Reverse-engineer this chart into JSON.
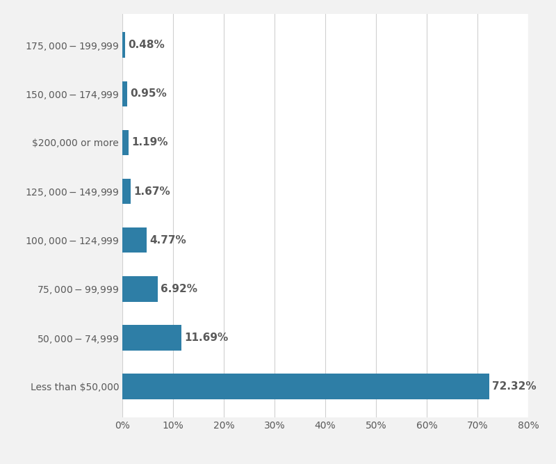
{
  "categories": [
    "Less than $50,000",
    "$50,000 - $74,999",
    "$75,000 - $99,999",
    "$100,000 - $124,999",
    "$125,000 - $149,999",
    "$200,000 or more",
    "$150,000 - $174,999",
    "$175,000 - $199,999"
  ],
  "values": [
    72.32,
    11.69,
    6.92,
    4.77,
    1.67,
    1.19,
    0.95,
    0.48
  ],
  "labels": [
    "72.32%",
    "11.69%",
    "6.92%",
    "4.77%",
    "1.67%",
    "1.19%",
    "0.95%",
    "0.48%"
  ],
  "bar_color": "#2e7ea6",
  "background_color": "#f2f2f2",
  "plot_background": "#ffffff",
  "grid_color": "#d0d0d0",
  "text_color": "#595959",
  "xlim": [
    0,
    80
  ],
  "xticks": [
    0,
    10,
    20,
    30,
    40,
    50,
    60,
    70,
    80
  ],
  "bar_height": 0.52,
  "label_fontsize": 11,
  "tick_fontsize": 10,
  "label_fontweight": "bold"
}
